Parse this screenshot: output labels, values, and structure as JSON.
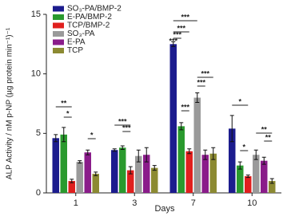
{
  "chart_data": {
    "type": "bar",
    "x_label": "Days",
    "y_label": "ALP Activity / nM p-NP (µg protein min⁻¹)⁻¹",
    "categories": [
      "1",
      "3",
      "7",
      "10"
    ],
    "series": [
      {
        "name": "SO₃-PA/BMP-2",
        "color": "#1c1c8e",
        "values": [
          4.6,
          3.6,
          12.5,
          5.4
        ],
        "errors": [
          0.3,
          0.1,
          0.2,
          1.1
        ]
      },
      {
        "name": "E-PA/BMP-2",
        "color": "#2a9a2e",
        "values": [
          4.9,
          3.8,
          5.6,
          2.3
        ],
        "errors": [
          0.6,
          0.15,
          0.3,
          0.3
        ]
      },
      {
        "name": "TCP/BMP-2",
        "color": "#e0201e",
        "values": [
          1.0,
          1.9,
          3.5,
          1.4
        ],
        "errors": [
          0.15,
          0.3,
          0.2,
          0.1
        ]
      },
      {
        "name": "SO₃-PA",
        "color": "#9a9a9a",
        "values": [
          2.6,
          3.1,
          8.0,
          3.2
        ],
        "errors": [
          0.1,
          0.5,
          0.4,
          0.4
        ]
      },
      {
        "name": "E-PA",
        "color": "#8a1c8a",
        "values": [
          3.4,
          3.2,
          3.2,
          2.7
        ],
        "errors": [
          0.2,
          0.6,
          0.4,
          0.3
        ]
      },
      {
        "name": "TCP",
        "color": "#8c8a32",
        "values": [
          1.6,
          2.1,
          3.3,
          1.0
        ],
        "errors": [
          0.15,
          0.2,
          0.5,
          0.2
        ]
      }
    ],
    "ylim": [
      0,
      15
    ],
    "yticks": [
      0,
      5,
      10,
      15
    ],
    "annotations": [
      "**",
      "*",
      "*",
      "***",
      "***",
      "***",
      "***",
      "***",
      "***",
      "***",
      "***",
      "***",
      "*",
      "*",
      "**",
      "**"
    ]
  }
}
